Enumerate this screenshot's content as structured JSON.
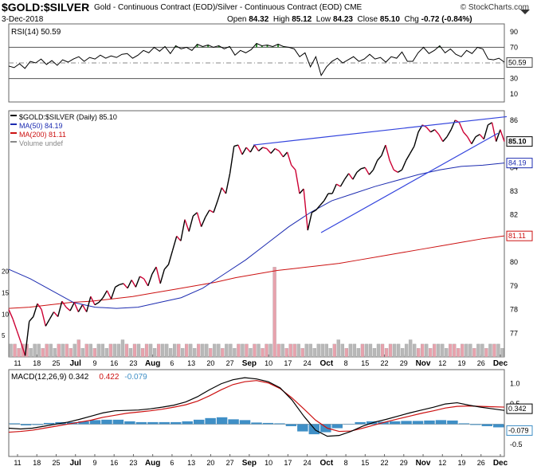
{
  "header": {
    "symbol": "$GOLD:$SILVER",
    "description": "Gold - Continuous Contract (EOD)/Silver - Continuous Contract (EOD)  CME",
    "brand": "© StockCharts.com",
    "date": "3-Dec-2018",
    "open_label": "Open",
    "open": "84.32",
    "high_label": "High",
    "high": "85.12",
    "low_label": "Low",
    "low": "84.23",
    "close_label": "Close",
    "close": "85.10",
    "chg_label": "Chg",
    "chg": "-0.72 (-0.84%)"
  },
  "colors": {
    "price_black": "#000000",
    "price_red": "#cc0033",
    "ma50": "#1c2bb0",
    "ma200": "#cc1111",
    "volume_red": "#e8a2ad",
    "volume_gray": "#b8b8b8",
    "macd_hist": "#3f8fc6",
    "trendline": "#3344dd"
  },
  "chart_data": [
    {
      "type": "line",
      "title": "RSI(14) 50.59",
      "ylim": [
        0,
        100
      ],
      "yticks": [
        "90",
        "70",
        "50",
        "30",
        "10"
      ],
      "reference_lines": [
        70,
        30
      ],
      "last_value_badge": "50.59",
      "values": [
        46,
        44,
        49,
        43,
        52,
        50,
        55,
        48,
        53,
        47,
        54,
        51,
        55,
        58,
        52,
        57,
        55,
        60,
        56,
        59,
        57,
        61,
        62,
        56,
        60,
        66,
        63,
        70,
        65,
        71,
        62,
        72,
        68,
        70,
        66,
        74,
        71,
        73,
        70,
        72,
        68,
        71,
        60,
        66,
        63,
        67,
        75,
        72,
        73,
        71,
        74,
        71,
        70,
        68,
        58,
        63,
        45,
        58,
        34,
        45,
        52,
        56,
        50,
        54,
        58,
        52,
        55,
        61,
        55,
        57,
        51,
        58,
        56,
        64,
        52,
        52,
        63,
        70,
        62,
        66,
        72,
        63,
        68,
        61,
        58,
        66,
        62,
        70,
        68,
        55,
        54,
        56,
        51
      ]
    },
    {
      "type": "line",
      "title": "$GOLD:$SILVER (Daily) 85.10",
      "legend": [
        {
          "name": "$GOLD:$SILVER (Daily) 85.10",
          "color": "#000000"
        },
        {
          "name": "MA(50) 84.19",
          "color": "#1c2bb0"
        },
        {
          "name": "MA(200) 81.11",
          "color": "#cc1111"
        },
        {
          "name": "Volume undef",
          "color": "#888888"
        }
      ],
      "ylim": [
        76,
        86.4
      ],
      "yticks": [
        "86",
        "85",
        "84",
        "83",
        "82",
        "81",
        "80",
        "79",
        "78",
        "77"
      ],
      "volume_axis_ticks": [
        "20",
        "15",
        "10",
        "5"
      ],
      "last_badges": [
        "85.10",
        "84.19",
        "81.11"
      ],
      "x_axis_ticks": [
        "11",
        "18",
        "25",
        "Jul",
        "9",
        "16",
        "23",
        "Aug",
        "6",
        "13",
        "20",
        "27",
        "Sep",
        "10",
        "17",
        "24",
        "Oct",
        "8",
        "15",
        "22",
        "29",
        "Nov",
        "12",
        "19",
        "26",
        "Dec"
      ],
      "series": [
        {
          "name": "$GOLD:$SILVER",
          "values": [
            78.0,
            77.6,
            77.1,
            76.6,
            76.05,
            77.5,
            77.7,
            78.25,
            78.0,
            77.3,
            77.6,
            77.9,
            77.7,
            78.35,
            78.1,
            77.95,
            78.3,
            77.9,
            78.2,
            77.9,
            78.55,
            78.2,
            78.3,
            78.5,
            78.8,
            78.45,
            78.95,
            79.05,
            79.1,
            78.9,
            79.25,
            78.95,
            79.4,
            79.3,
            79.0,
            79.5,
            79.8,
            79.1,
            79.7,
            79.9,
            80.5,
            81.1,
            80.9,
            81.8,
            81.3,
            81.95,
            82.1,
            81.5,
            81.9,
            82.2,
            82.1,
            82.6,
            83.15,
            82.9,
            83.75,
            84.9,
            84.95,
            84.55,
            84.85,
            84.65,
            84.95,
            84.7,
            84.85,
            84.8,
            84.6,
            84.8,
            84.7,
            84.45,
            84.65,
            84.1,
            83.9,
            82.9,
            83.1,
            81.35,
            82.1,
            82.2,
            82.4,
            82.6,
            82.9,
            82.9,
            83.3,
            83.2,
            83.5,
            83.75,
            83.5,
            83.8,
            83.95,
            84.0,
            83.7,
            83.9,
            84.3,
            84.5,
            84.95,
            84.3,
            83.9,
            83.8,
            83.9,
            84.3,
            84.6,
            84.9,
            85.5,
            85.8,
            85.7,
            85.5,
            85.6,
            85.4,
            85.1,
            85.3,
            85.6,
            86.0,
            85.9,
            85.5,
            85.3,
            85.0,
            85.3,
            85.4,
            85.2,
            85.8,
            85.9,
            85.1,
            85.6,
            85.1
          ]
        },
        {
          "name": "MA(50)",
          "values": [
            79.7,
            79.3,
            78.8,
            78.3,
            78.1,
            78.05,
            78.1,
            78.3,
            78.5,
            78.9,
            79.5,
            80.1,
            80.8,
            81.5,
            82.1,
            82.6,
            82.9,
            83.2,
            83.45,
            83.7,
            83.9,
            84.05,
            84.1,
            84.19
          ]
        },
        {
          "name": "MA(200)",
          "values": [
            78.05,
            78.1,
            78.2,
            78.3,
            78.35,
            78.45,
            78.55,
            78.7,
            78.85,
            79.0,
            79.15,
            79.35,
            79.5,
            79.65,
            79.75,
            79.85,
            79.95,
            80.1,
            80.25,
            80.4,
            80.55,
            80.7,
            80.85,
            81.0,
            81.11
          ]
        },
        {
          "name": "Volume",
          "values": [
            3,
            3,
            2,
            3,
            3,
            2,
            3,
            3,
            2,
            3,
            3,
            2,
            3,
            3,
            3,
            2,
            3,
            4,
            2,
            3,
            3,
            2,
            3,
            3,
            2,
            3,
            3,
            3,
            4,
            3,
            2,
            3,
            3,
            2,
            3,
            3,
            2,
            3,
            3,
            3,
            2,
            3,
            3,
            2,
            3,
            3,
            2,
            3,
            3,
            3,
            2,
            3,
            3,
            2,
            3,
            3,
            2,
            3,
            3,
            3,
            2,
            3,
            3,
            2,
            3,
            3,
            21,
            3,
            3,
            2,
            3,
            3,
            3,
            2,
            3,
            3,
            2,
            3,
            3,
            3,
            2,
            3,
            4,
            3,
            2,
            3,
            3,
            2,
            3,
            3,
            3,
            2,
            3,
            3,
            2,
            3,
            3,
            3,
            2,
            3,
            4,
            3,
            2,
            3,
            3,
            2,
            3,
            3,
            3,
            2,
            3,
            3,
            2,
            3,
            3,
            3,
            2,
            3,
            3,
            2,
            3,
            3,
            3,
            2
          ]
        }
      ],
      "annotations": [
        "rising wedge trendlines"
      ]
    },
    {
      "type": "line",
      "title": "MACD(12,26,9) 0.342, 0.422, -0.079",
      "legend": [
        {
          "name": "MACD(12,26,9) 0.342",
          "color": "#000000"
        },
        {
          "name": "0.422",
          "color": "#cc1111"
        },
        {
          "name": "-0.079",
          "color": "#3f8fc6"
        }
      ],
      "ylim": [
        -0.8,
        1.35
      ],
      "yticks": [
        "1.0",
        "0.5",
        "-0.5"
      ],
      "last_badges": [
        "0.342",
        "-0.079"
      ],
      "x_axis_ticks": [
        "11",
        "18",
        "25",
        "Jul",
        "9",
        "16",
        "23",
        "Aug",
        "6",
        "13",
        "20",
        "27",
        "Sep",
        "10",
        "17",
        "24",
        "Oct",
        "8",
        "15",
        "22",
        "29",
        "Nov",
        "12",
        "19",
        "26",
        "Dec"
      ],
      "series": [
        {
          "name": "MACD",
          "values": [
            -0.1,
            -0.12,
            -0.1,
            -0.05,
            0.0,
            0.05,
            0.12,
            0.2,
            0.28,
            0.33,
            0.34,
            0.35,
            0.38,
            0.42,
            0.47,
            0.55,
            0.68,
            0.85,
            1.0,
            1.1,
            1.15,
            1.12,
            1.05,
            0.9,
            0.6,
            0.2,
            -0.15,
            -0.3,
            -0.28,
            -0.18,
            -0.05,
            0.05,
            0.12,
            0.2,
            0.28,
            0.35,
            0.42,
            0.5,
            0.53,
            0.47,
            0.42,
            0.38,
            0.34
          ]
        },
        {
          "name": "Signal",
          "values": [
            -0.2,
            -0.18,
            -0.15,
            -0.1,
            -0.05,
            0.0,
            0.05,
            0.1,
            0.17,
            0.22,
            0.27,
            0.3,
            0.33,
            0.37,
            0.42,
            0.48,
            0.57,
            0.7,
            0.85,
            0.98,
            1.05,
            1.08,
            1.02,
            0.88,
            0.65,
            0.38,
            0.1,
            -0.1,
            -0.18,
            -0.17,
            -0.1,
            -0.02,
            0.06,
            0.13,
            0.2,
            0.27,
            0.33,
            0.4,
            0.44,
            0.45,
            0.44,
            0.43,
            0.422
          ]
        },
        {
          "name": "Histogram",
          "values": [
            0.02,
            -0.03,
            -0.02,
            0.03,
            0.05,
            0.05,
            0.07,
            0.1,
            0.11,
            0.11,
            0.07,
            0.05,
            0.05,
            0.05,
            0.05,
            0.07,
            0.11,
            0.15,
            0.17,
            0.12,
            0.1,
            0.04,
            0.03,
            0.02,
            -0.05,
            -0.18,
            -0.25,
            -0.2,
            -0.1,
            0.0,
            0.05,
            0.07,
            0.06,
            0.07,
            0.08,
            0.08,
            0.09,
            0.1,
            0.09,
            0.02,
            -0.02,
            -0.05,
            -0.079
          ]
        }
      ]
    }
  ]
}
